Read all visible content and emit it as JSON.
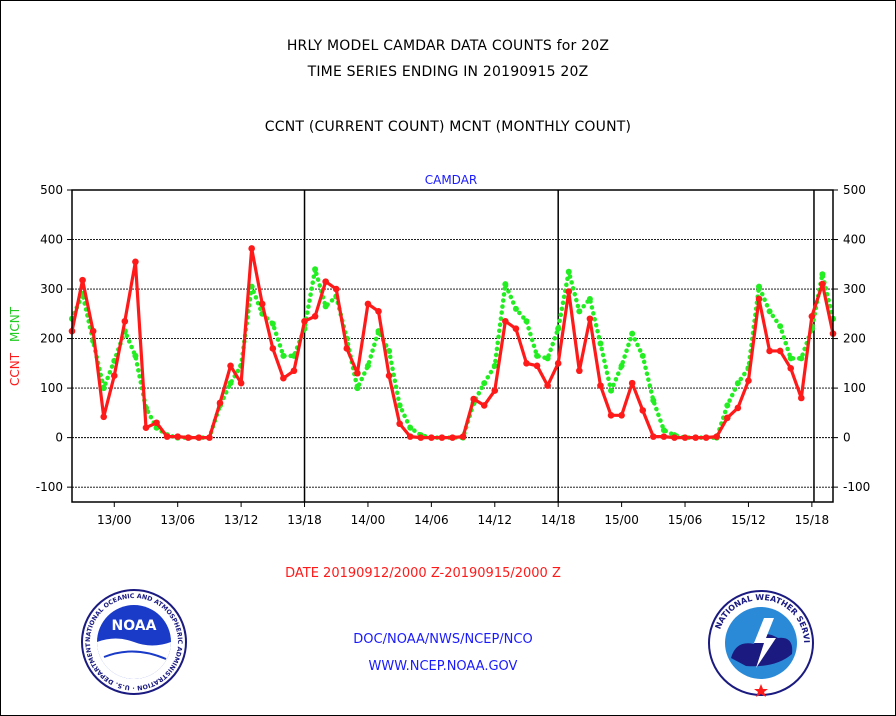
{
  "header": {
    "title_line1": "HRLY MODEL CAMDAR DATA COUNTS for 20Z",
    "title_line2": "TIME SERIES ENDING IN 20190915 20Z",
    "title_line3": "CCNT (CURRENT COUNT) MCNT (MONTHLY COUNT)"
  },
  "footer": {
    "date_range": "DATE 20190912/2000 Z-20190915/2000 Z",
    "org": "DOC/NOAA/NWS/NCEP/NCO",
    "url": "WWW.NCEP.NOAA.GOV"
  },
  "logos": {
    "noaa_text": "NOAA",
    "noaa_ring_text": "NATIONAL OCEANIC AND ATMOSPHERIC ADMINISTRATION · U.S. DEPARTMENT OF COMMERCE",
    "nws_ring_text": "NATIONAL WEATHER SERVICE"
  },
  "chart_data": {
    "type": "line",
    "subtitle": "CAMDAR",
    "ylabel_ccnt": "CCNT",
    "ylabel_mcnt": "MCNT",
    "ylim": [
      -130,
      500
    ],
    "yticks": [
      -100,
      0,
      100,
      200,
      300,
      400,
      500
    ],
    "grid": "horizontal",
    "x_hours": "hours after 2019-09-12 20Z",
    "xlim": [
      0,
      72
    ],
    "xticks": [
      {
        "hour": 4,
        "label": "13/00"
      },
      {
        "hour": 10,
        "label": "13/06"
      },
      {
        "hour": 16,
        "label": "13/12"
      },
      {
        "hour": 22,
        "label": "13/18"
      },
      {
        "hour": 28,
        "label": "14/00"
      },
      {
        "hour": 34,
        "label": "14/06"
      },
      {
        "hour": 40,
        "label": "14/12"
      },
      {
        "hour": 46,
        "label": "14/18"
      },
      {
        "hour": 52,
        "label": "15/00"
      },
      {
        "hour": 58,
        "label": "15/06"
      },
      {
        "hour": 64,
        "label": "15/12"
      },
      {
        "hour": 70,
        "label": "15/18"
      }
    ],
    "day_boundaries_hours": [
      22,
      46,
      70.2
    ],
    "series": [
      {
        "name": "CCNT",
        "color": "#ff1a1a",
        "style": "solid",
        "values": [
          215,
          318,
          215,
          42,
          125,
          235,
          355,
          20,
          30,
          2,
          2,
          0,
          0,
          0,
          70,
          145,
          110,
          382,
          270,
          180,
          120,
          135,
          235,
          245,
          315,
          300,
          180,
          130,
          270,
          255,
          125,
          28,
          2,
          0,
          0,
          0,
          0,
          2,
          78,
          65,
          95,
          235,
          220,
          150,
          145,
          105,
          150,
          295,
          135,
          240,
          105,
          45,
          45,
          110,
          55,
          2,
          2,
          0,
          0,
          0,
          0,
          2,
          40,
          60,
          115,
          280,
          175,
          175,
          140,
          80,
          245,
          310,
          210
        ]
      },
      {
        "name": "MCNT",
        "color": "#22ee22",
        "style": "dotted",
        "values": [
          240,
          290,
          195,
          100,
          155,
          215,
          165,
          60,
          20,
          5,
          0,
          0,
          0,
          0,
          65,
          110,
          145,
          305,
          250,
          230,
          165,
          165,
          220,
          340,
          265,
          285,
          200,
          100,
          145,
          215,
          175,
          65,
          20,
          5,
          0,
          0,
          0,
          0,
          70,
          110,
          145,
          310,
          260,
          235,
          165,
          160,
          220,
          335,
          255,
          280,
          190,
          95,
          145,
          210,
          165,
          75,
          15,
          5,
          0,
          0,
          0,
          0,
          65,
          110,
          140,
          305,
          255,
          225,
          160,
          160,
          220,
          330,
          240
        ]
      }
    ]
  }
}
